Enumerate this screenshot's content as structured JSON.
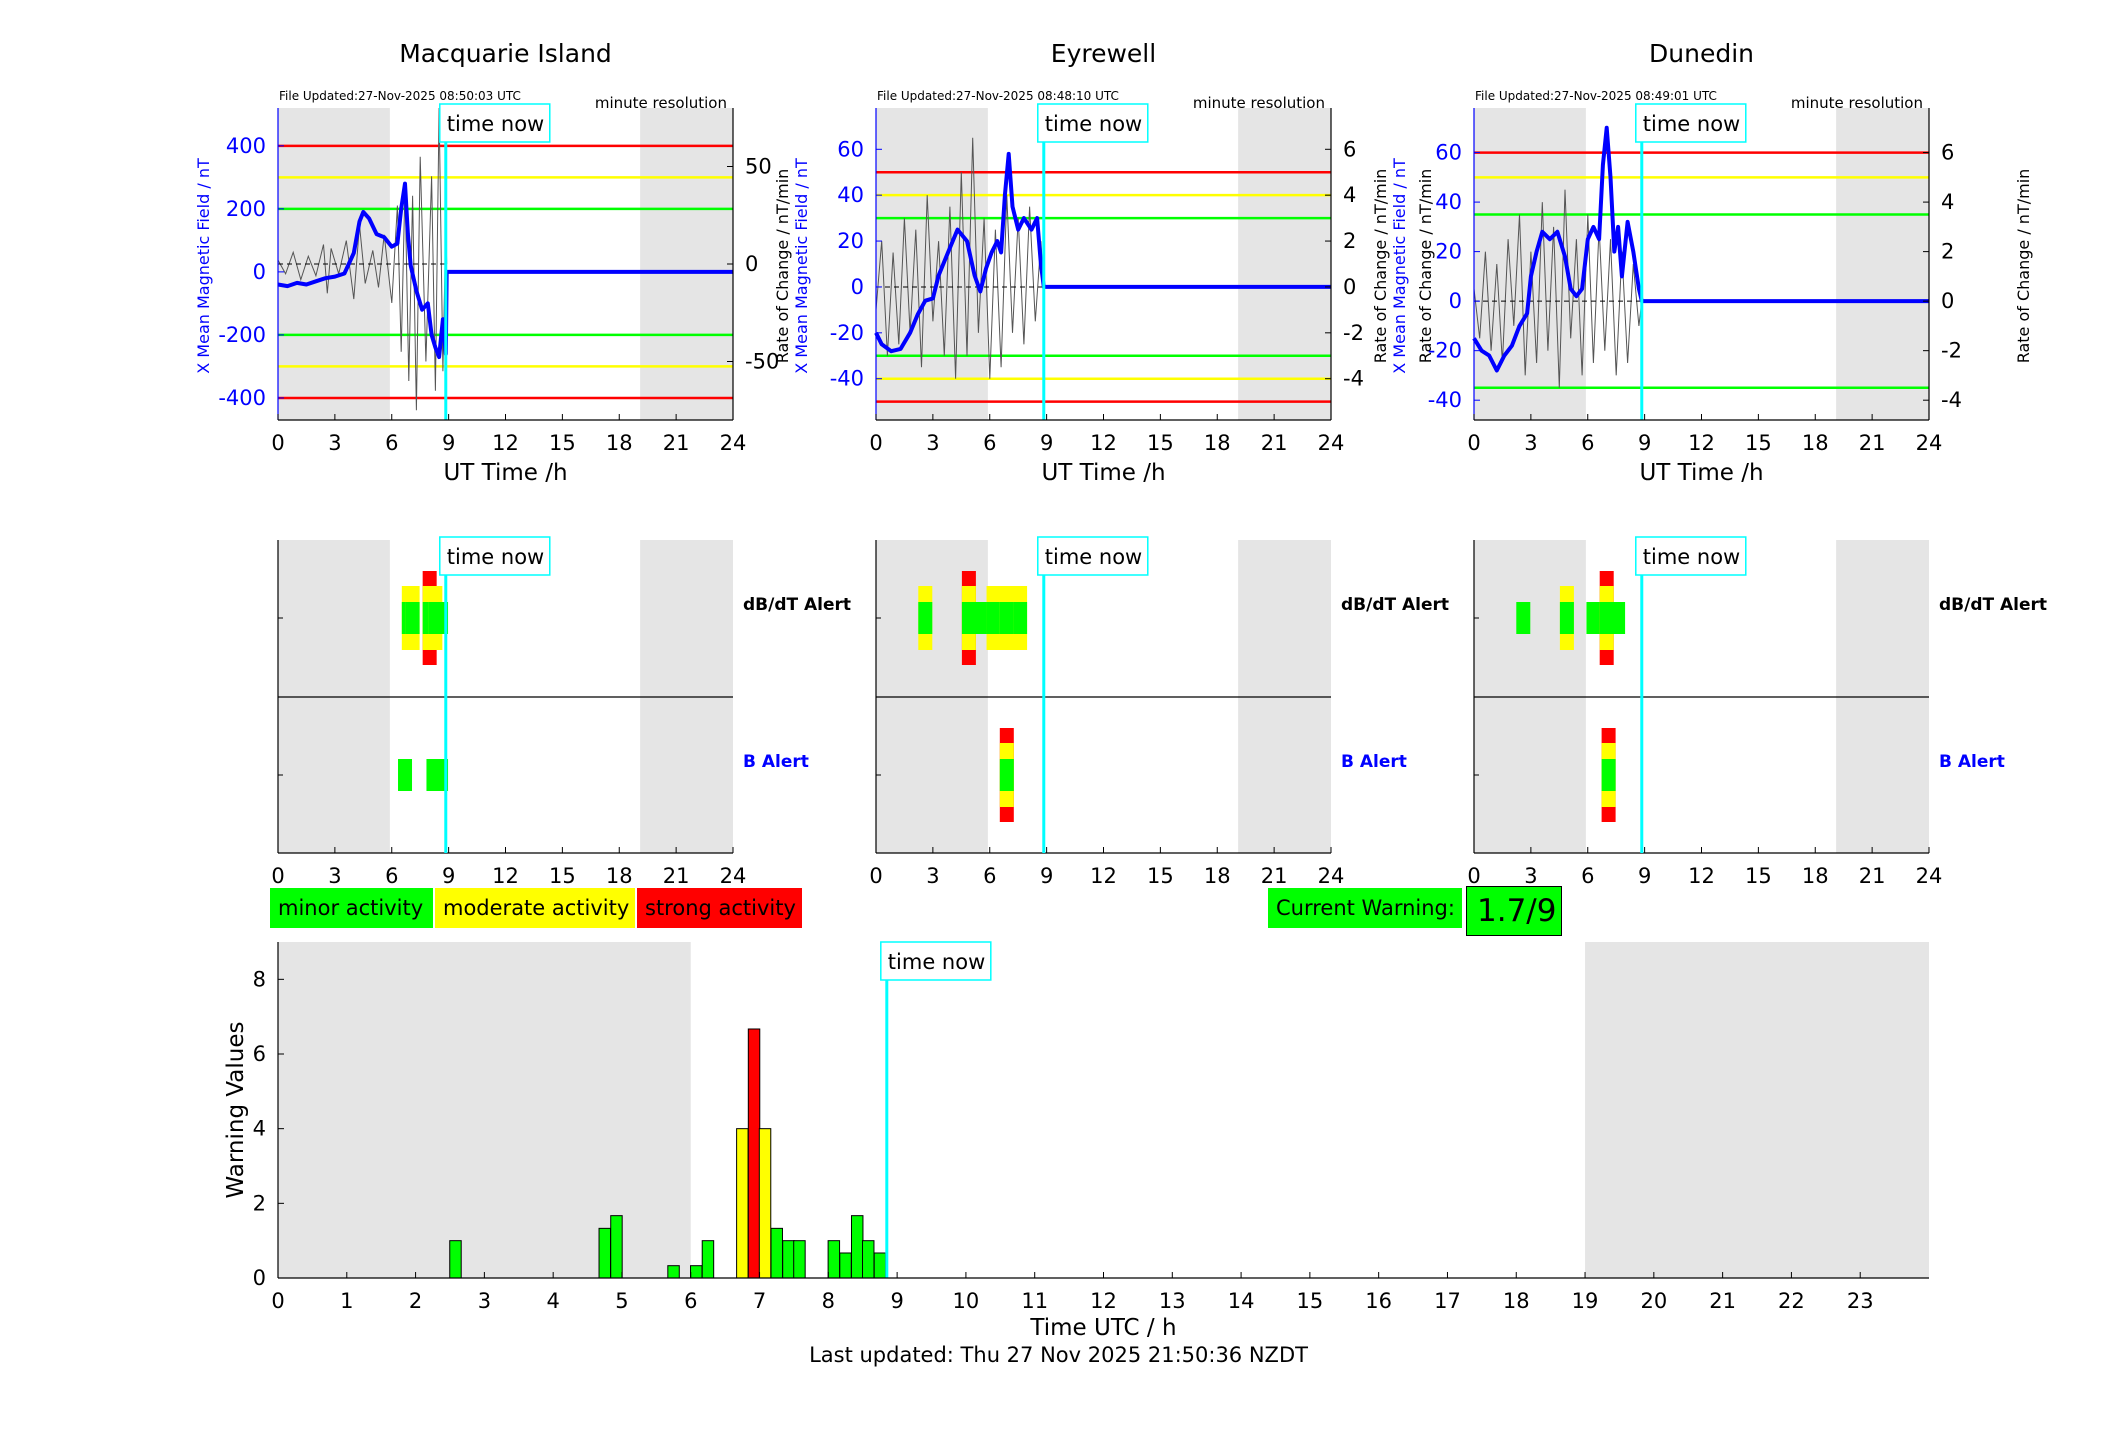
{
  "colors": {
    "red": "#ff0000",
    "yellow": "#ffff00",
    "green": "#00ff00",
    "blue": "#0000ff",
    "cyan": "#00ffff",
    "grey_shade": "#e5e5e5",
    "black_trace": "#555555"
  },
  "time_now_label": "time now",
  "time_now_hour": 8.85,
  "shaded_night_hours": [
    [
      0,
      6
    ],
    [
      19,
      24
    ]
  ],
  "stations": [
    {
      "name": "Macquarie Island",
      "file_updated": "File Updated:27-Nov-2025 08:50:03 UTC",
      "resolution_label": "minute resolution",
      "shade": [
        [
          0,
          5.9
        ],
        [
          19.1,
          24
        ]
      ],
      "left_axis_label": "X Mean Magnetic Field / nT",
      "right_axis_label": "",
      "left_ylim": [
        -470,
        520
      ],
      "left_ticks": [
        -400,
        -200,
        0,
        200,
        400
      ],
      "right_ylim": [
        -80,
        80
      ],
      "right_ticks": [
        -50,
        0,
        50
      ],
      "red_thresholds": [
        400,
        -400
      ],
      "yellow_thresholds": [
        300,
        -300
      ],
      "green_thresholds": [
        200,
        -200
      ],
      "x_mean_field": [
        [
          0,
          -40
        ],
        [
          0.5,
          -45
        ],
        [
          1,
          -35
        ],
        [
          1.5,
          -40
        ],
        [
          2,
          -30
        ],
        [
          2.5,
          -20
        ],
        [
          3,
          -15
        ],
        [
          3.5,
          -5
        ],
        [
          4,
          60
        ],
        [
          4.3,
          160
        ],
        [
          4.5,
          190
        ],
        [
          4.8,
          170
        ],
        [
          5.2,
          120
        ],
        [
          5.6,
          110
        ],
        [
          6,
          80
        ],
        [
          6.3,
          90
        ],
        [
          6.5,
          200
        ],
        [
          6.7,
          280
        ],
        [
          6.85,
          120
        ],
        [
          7,
          20
        ],
        [
          7.3,
          -60
        ],
        [
          7.6,
          -120
        ],
        [
          7.9,
          -100
        ],
        [
          8.1,
          -200
        ],
        [
          8.3,
          -240
        ],
        [
          8.5,
          -270
        ],
        [
          8.7,
          -150
        ],
        [
          8.85,
          -260
        ],
        [
          8.9,
          0
        ],
        [
          24,
          0
        ]
      ],
      "rate_of_change": [
        [
          0,
          2
        ],
        [
          0.4,
          -5
        ],
        [
          0.8,
          6
        ],
        [
          1.2,
          -8
        ],
        [
          1.6,
          4
        ],
        [
          2,
          -6
        ],
        [
          2.4,
          10
        ],
        [
          2.6,
          -15
        ],
        [
          2.8,
          8
        ],
        [
          3.2,
          -5
        ],
        [
          3.6,
          12
        ],
        [
          4,
          -18
        ],
        [
          4.3,
          20
        ],
        [
          4.6,
          -10
        ],
        [
          5,
          7
        ],
        [
          5.3,
          -12
        ],
        [
          5.6,
          15
        ],
        [
          6,
          -20
        ],
        [
          6.3,
          30
        ],
        [
          6.5,
          -45
        ],
        [
          6.7,
          40
        ],
        [
          6.9,
          -60
        ],
        [
          7.1,
          35
        ],
        [
          7.3,
          -75
        ],
        [
          7.5,
          55
        ],
        [
          7.8,
          -50
        ],
        [
          8.1,
          45
        ],
        [
          8.3,
          -65
        ],
        [
          8.5,
          80
        ],
        [
          8.7,
          -55
        ],
        [
          8.85,
          20
        ],
        [
          8.9,
          0
        ]
      ],
      "dbdt_alert": [
        {
          "hour": 6.9,
          "level": 2
        },
        {
          "hour": 7.1,
          "level": 2
        },
        {
          "hour": 8.0,
          "level": 3
        },
        {
          "hour": 8.3,
          "level": 2
        },
        {
          "hour": 8.6,
          "level": 1
        }
      ],
      "b_alert": [
        {
          "hour": 6.7,
          "level": 1
        },
        {
          "hour": 8.2,
          "level": 1
        },
        {
          "hour": 8.6,
          "level": 1
        }
      ]
    },
    {
      "name": "Eyrewell",
      "file_updated": "File Updated:27-Nov-2025 08:48:10 UTC",
      "resolution_label": "minute resolution",
      "shade": [
        [
          0,
          5.9
        ],
        [
          19.1,
          24
        ]
      ],
      "left_axis_label": "X Mean Magnetic Field / nT",
      "right_axis_label": "Rate of Change / nT/min",
      "left_ylim": [
        -58,
        78
      ],
      "left_ticks": [
        -40,
        -20,
        0,
        20,
        40,
        60
      ],
      "right_ylim": [
        -5.8,
        7.8
      ],
      "right_ticks": [
        -4,
        -2,
        0,
        2,
        4,
        6
      ],
      "red_thresholds": [
        50,
        -50
      ],
      "yellow_thresholds": [
        40,
        -40
      ],
      "green_thresholds": [
        30,
        -30
      ],
      "x_mean_field": [
        [
          0,
          -20
        ],
        [
          0.3,
          -25
        ],
        [
          0.8,
          -28
        ],
        [
          1.3,
          -27
        ],
        [
          1.8,
          -20
        ],
        [
          2.2,
          -12
        ],
        [
          2.6,
          -6
        ],
        [
          3,
          -5
        ],
        [
          3.3,
          5
        ],
        [
          3.8,
          15
        ],
        [
          4.3,
          25
        ],
        [
          4.8,
          20
        ],
        [
          5.2,
          5
        ],
        [
          5.5,
          -2
        ],
        [
          5.8,
          8
        ],
        [
          6.1,
          15
        ],
        [
          6.4,
          20
        ],
        [
          6.6,
          15
        ],
        [
          6.8,
          40
        ],
        [
          7,
          58
        ],
        [
          7.2,
          35
        ],
        [
          7.5,
          25
        ],
        [
          7.8,
          30
        ],
        [
          8.2,
          25
        ],
        [
          8.5,
          30
        ],
        [
          8.7,
          10
        ],
        [
          8.85,
          0
        ],
        [
          24,
          0
        ]
      ],
      "rate_of_change": [
        [
          0,
          -1
        ],
        [
          0.3,
          2
        ],
        [
          0.6,
          -3
        ],
        [
          0.9,
          1.5
        ],
        [
          1.2,
          -2.5
        ],
        [
          1.5,
          3
        ],
        [
          1.8,
          -2
        ],
        [
          2.1,
          2.5
        ],
        [
          2.4,
          -3.5
        ],
        [
          2.7,
          4
        ],
        [
          3,
          -1.5
        ],
        [
          3.3,
          2
        ],
        [
          3.6,
          -3
        ],
        [
          3.9,
          3.5
        ],
        [
          4.2,
          -4
        ],
        [
          4.5,
          5
        ],
        [
          4.8,
          -3
        ],
        [
          5.1,
          6.5
        ],
        [
          5.4,
          -2
        ],
        [
          5.7,
          3
        ],
        [
          6,
          -4
        ],
        [
          6.3,
          2.5
        ],
        [
          6.6,
          -3.5
        ],
        [
          6.9,
          4
        ],
        [
          7.2,
          -2
        ],
        [
          7.5,
          3
        ],
        [
          7.8,
          -2.5
        ],
        [
          8.1,
          3.5
        ],
        [
          8.4,
          -1.5
        ],
        [
          8.7,
          2
        ],
        [
          8.85,
          0
        ]
      ],
      "dbdt_alert": [
        {
          "hour": 2.6,
          "level": 2
        },
        {
          "hour": 4.9,
          "level": 3
        },
        {
          "hour": 5.6,
          "level": 1
        },
        {
          "hour": 6.2,
          "level": 2
        },
        {
          "hour": 6.9,
          "level": 2
        },
        {
          "hour": 7.6,
          "level": 2
        }
      ],
      "b_alert": [
        {
          "hour": 6.9,
          "level": 3
        }
      ]
    },
    {
      "name": "Dunedin",
      "file_updated": "File Updated:27-Nov-2025 08:49:01 UTC",
      "resolution_label": "minute resolution",
      "shade": [
        [
          0,
          5.9
        ],
        [
          19.1,
          24
        ]
      ],
      "left_axis_label": "X Mean Magnetic Field / nT",
      "right_axis_label": "Rate of Change / nT/min",
      "left_ylim": [
        -48,
        78
      ],
      "left_ticks": [
        -40,
        -20,
        0,
        20,
        40,
        60
      ],
      "right_ylim": [
        -4.8,
        7.8
      ],
      "right_ticks": [
        -4,
        -2,
        0,
        2,
        4,
        6
      ],
      "red_thresholds": [
        60
      ],
      "yellow_thresholds": [
        50
      ],
      "green_thresholds": [
        35,
        -35
      ],
      "x_mean_field": [
        [
          0,
          -15
        ],
        [
          0.4,
          -20
        ],
        [
          0.8,
          -22
        ],
        [
          1.2,
          -28
        ],
        [
          1.6,
          -22
        ],
        [
          2,
          -18
        ],
        [
          2.4,
          -10
        ],
        [
          2.8,
          -5
        ],
        [
          3,
          10
        ],
        [
          3.3,
          20
        ],
        [
          3.6,
          28
        ],
        [
          4,
          25
        ],
        [
          4.4,
          28
        ],
        [
          4.8,
          18
        ],
        [
          5.1,
          5
        ],
        [
          5.4,
          2
        ],
        [
          5.7,
          5
        ],
        [
          6,
          25
        ],
        [
          6.3,
          30
        ],
        [
          6.6,
          25
        ],
        [
          6.8,
          55
        ],
        [
          7,
          70
        ],
        [
          7.2,
          50
        ],
        [
          7.4,
          20
        ],
        [
          7.6,
          30
        ],
        [
          7.8,
          10
        ],
        [
          8.1,
          32
        ],
        [
          8.4,
          20
        ],
        [
          8.7,
          5
        ],
        [
          8.85,
          0
        ],
        [
          24,
          0
        ]
      ],
      "rate_of_change": [
        [
          0,
          0.5
        ],
        [
          0.3,
          -1.5
        ],
        [
          0.6,
          2
        ],
        [
          0.9,
          -2
        ],
        [
          1.2,
          1.5
        ],
        [
          1.5,
          -2.5
        ],
        [
          1.8,
          2.5
        ],
        [
          2.1,
          -1
        ],
        [
          2.4,
          3.5
        ],
        [
          2.7,
          -3
        ],
        [
          3,
          2
        ],
        [
          3.3,
          -2.5
        ],
        [
          3.6,
          4
        ],
        [
          3.9,
          -2
        ],
        [
          4.2,
          3
        ],
        [
          4.5,
          -3.5
        ],
        [
          4.8,
          4.5
        ],
        [
          5.1,
          -1.5
        ],
        [
          5.4,
          2.5
        ],
        [
          5.7,
          -3
        ],
        [
          6,
          3.5
        ],
        [
          6.3,
          -2.5
        ],
        [
          6.6,
          3
        ],
        [
          6.9,
          -2
        ],
        [
          7.2,
          2.5
        ],
        [
          7.5,
          -3
        ],
        [
          7.8,
          2
        ],
        [
          8.1,
          -2.5
        ],
        [
          8.4,
          1.5
        ],
        [
          8.7,
          -1
        ],
        [
          8.85,
          0
        ]
      ],
      "dbdt_alert": [
        {
          "hour": 2.6,
          "level": 1
        },
        {
          "hour": 4.9,
          "level": 2
        },
        {
          "hour": 6.3,
          "level": 1
        },
        {
          "hour": 7.0,
          "level": 3
        },
        {
          "hour": 7.6,
          "level": 1
        }
      ],
      "b_alert": [
        {
          "hour": 7.1,
          "level": 3
        }
      ]
    }
  ],
  "x_axis_label_top": "UT Time /h",
  "x_ticks_top": [
    0,
    3,
    6,
    9,
    12,
    15,
    18,
    21,
    24
  ],
  "alert_labels": {
    "dbdt": "dB/dT Alert",
    "b": "B Alert"
  },
  "legend": {
    "minor": "minor activity",
    "moderate": "moderate activity",
    "strong": "strong activity"
  },
  "current_warning": {
    "label": "Current Warning:",
    "value": "1.7/9"
  },
  "chart_data": {
    "type": "bar",
    "title": "",
    "xlabel": "Time UTC / h",
    "ylabel": "Warning Values",
    "xlim": [
      0,
      24
    ],
    "ylim": [
      0,
      9
    ],
    "y_ticks": [
      0,
      2,
      4,
      6,
      8
    ],
    "x_ticks": [
      0,
      1,
      2,
      3,
      4,
      5,
      6,
      7,
      8,
      9,
      10,
      11,
      12,
      13,
      14,
      15,
      16,
      17,
      18,
      19,
      20,
      21,
      22,
      23
    ],
    "bar_width_h": 0.1667,
    "bars": [
      {
        "x": 2.58,
        "value": 1.0,
        "level": "minor"
      },
      {
        "x": 4.75,
        "value": 1.33,
        "level": "minor"
      },
      {
        "x": 4.92,
        "value": 1.67,
        "level": "minor"
      },
      {
        "x": 5.75,
        "value": 0.33,
        "level": "minor"
      },
      {
        "x": 6.08,
        "value": 0.33,
        "level": "minor"
      },
      {
        "x": 6.25,
        "value": 1.0,
        "level": "minor"
      },
      {
        "x": 6.75,
        "value": 4.0,
        "level": "moderate"
      },
      {
        "x": 6.92,
        "value": 6.67,
        "level": "strong"
      },
      {
        "x": 7.08,
        "value": 4.0,
        "level": "moderate"
      },
      {
        "x": 7.25,
        "value": 1.33,
        "level": "minor"
      },
      {
        "x": 7.42,
        "value": 1.0,
        "level": "minor"
      },
      {
        "x": 7.58,
        "value": 1.0,
        "level": "minor"
      },
      {
        "x": 8.08,
        "value": 1.0,
        "level": "minor"
      },
      {
        "x": 8.25,
        "value": 0.67,
        "level": "minor"
      },
      {
        "x": 8.42,
        "value": 1.67,
        "level": "minor"
      },
      {
        "x": 8.58,
        "value": 1.0,
        "level": "minor"
      },
      {
        "x": 8.75,
        "value": 0.67,
        "level": "minor"
      }
    ]
  },
  "footer": "Last updated: Thu 27 Nov 2025 21:50:36 NZDT"
}
